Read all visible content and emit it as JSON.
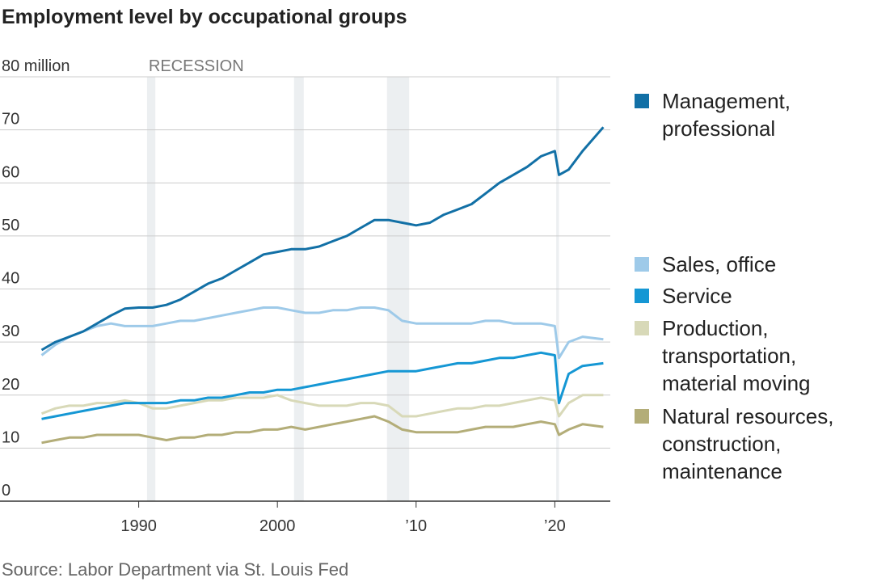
{
  "chart_data": {
    "type": "line",
    "title": "Employment level by occupational groups",
    "source": "Source: Labor Department via St. Louis Fed",
    "annotation": "RECESSION",
    "recessions": [
      [
        1990.6,
        1991.2
      ],
      [
        2001.2,
        2001.9
      ],
      [
        2007.9,
        2009.5
      ],
      [
        2020.1,
        2020.3
      ]
    ],
    "x": [
      1983,
      1984,
      1985,
      1986,
      1987,
      1988,
      1989,
      1990,
      1991,
      1992,
      1993,
      1994,
      1995,
      1996,
      1997,
      1998,
      1999,
      2000,
      2001,
      2002,
      2003,
      2004,
      2005,
      2006,
      2007,
      2008,
      2009,
      2010,
      2011,
      2012,
      2013,
      2014,
      2015,
      2016,
      2017,
      2018,
      2019,
      2020,
      2020.3,
      2021,
      2022,
      2023.5
    ],
    "series": [
      {
        "name": "Management, professional",
        "color": "#1270a6",
        "values": [
          28.5,
          30,
          31,
          32,
          33.5,
          35,
          36.3,
          36.5,
          36.5,
          37,
          38,
          39.5,
          41,
          42,
          43.5,
          45,
          46.5,
          47,
          47.5,
          47.5,
          48,
          49,
          50,
          51.5,
          53,
          53,
          52.5,
          52,
          52.5,
          54,
          55,
          56,
          58,
          60,
          61.5,
          63,
          65,
          66,
          61.5,
          62.5,
          66,
          70.5
        ]
      },
      {
        "name": "Sales, office",
        "color": "#9ecae9",
        "values": [
          27.5,
          29.5,
          31,
          32,
          33,
          33.5,
          33,
          33,
          33,
          33.5,
          34,
          34,
          34.5,
          35,
          35.5,
          36,
          36.5,
          36.5,
          36,
          35.5,
          35.5,
          36,
          36,
          36.5,
          36.5,
          36,
          34,
          33.5,
          33.5,
          33.5,
          33.5,
          33.5,
          34,
          34,
          33.5,
          33.5,
          33.5,
          33,
          27,
          30,
          31,
          30.5
        ]
      },
      {
        "name": "Service",
        "color": "#1597d4",
        "values": [
          15.5,
          16,
          16.5,
          17,
          17.5,
          18,
          18.5,
          18.5,
          18.5,
          18.5,
          19,
          19,
          19.5,
          19.5,
          20,
          20.5,
          20.5,
          21,
          21,
          21.5,
          22,
          22.5,
          23,
          23.5,
          24,
          24.5,
          24.5,
          24.5,
          25,
          25.5,
          26,
          26,
          26.5,
          27,
          27,
          27.5,
          28,
          27.5,
          18.5,
          24,
          25.5,
          26
        ]
      },
      {
        "name": "Production, transportation, material moving",
        "color": "#d8d9b8",
        "values": [
          16.5,
          17.5,
          18,
          18,
          18.5,
          18.5,
          19,
          18.5,
          17.5,
          17.5,
          18,
          18.5,
          19,
          19,
          19.5,
          19.5,
          19.5,
          20,
          19,
          18.5,
          18,
          18,
          18,
          18.5,
          18.5,
          18,
          16,
          16,
          16.5,
          17,
          17.5,
          17.5,
          18,
          18,
          18.5,
          19,
          19.5,
          19,
          16,
          18.5,
          20,
          20
        ]
      },
      {
        "name": "Natural resources, construction, maintenance",
        "color": "#b3ad78",
        "values": [
          11,
          11.5,
          12,
          12,
          12.5,
          12.5,
          12.5,
          12.5,
          12,
          11.5,
          12,
          12,
          12.5,
          12.5,
          13,
          13,
          13.5,
          13.5,
          14,
          13.5,
          14,
          14.5,
          15,
          15.5,
          16,
          15,
          13.5,
          13,
          13,
          13,
          13,
          13.5,
          14,
          14,
          14,
          14.5,
          15,
          14.5,
          12.5,
          13.5,
          14.5,
          14
        ]
      }
    ],
    "xlim": [
      1980,
      2024
    ],
    "xticks": [
      1990,
      2000,
      {
        "value": 2010,
        "label": "’10"
      },
      {
        "value": 2020,
        "label": "’20"
      }
    ],
    "ylim": [
      0,
      80
    ],
    "yticks": [
      0,
      10,
      20,
      30,
      40,
      50,
      60,
      70,
      {
        "value": 80,
        "label": "80 million"
      }
    ],
    "grid": true
  }
}
